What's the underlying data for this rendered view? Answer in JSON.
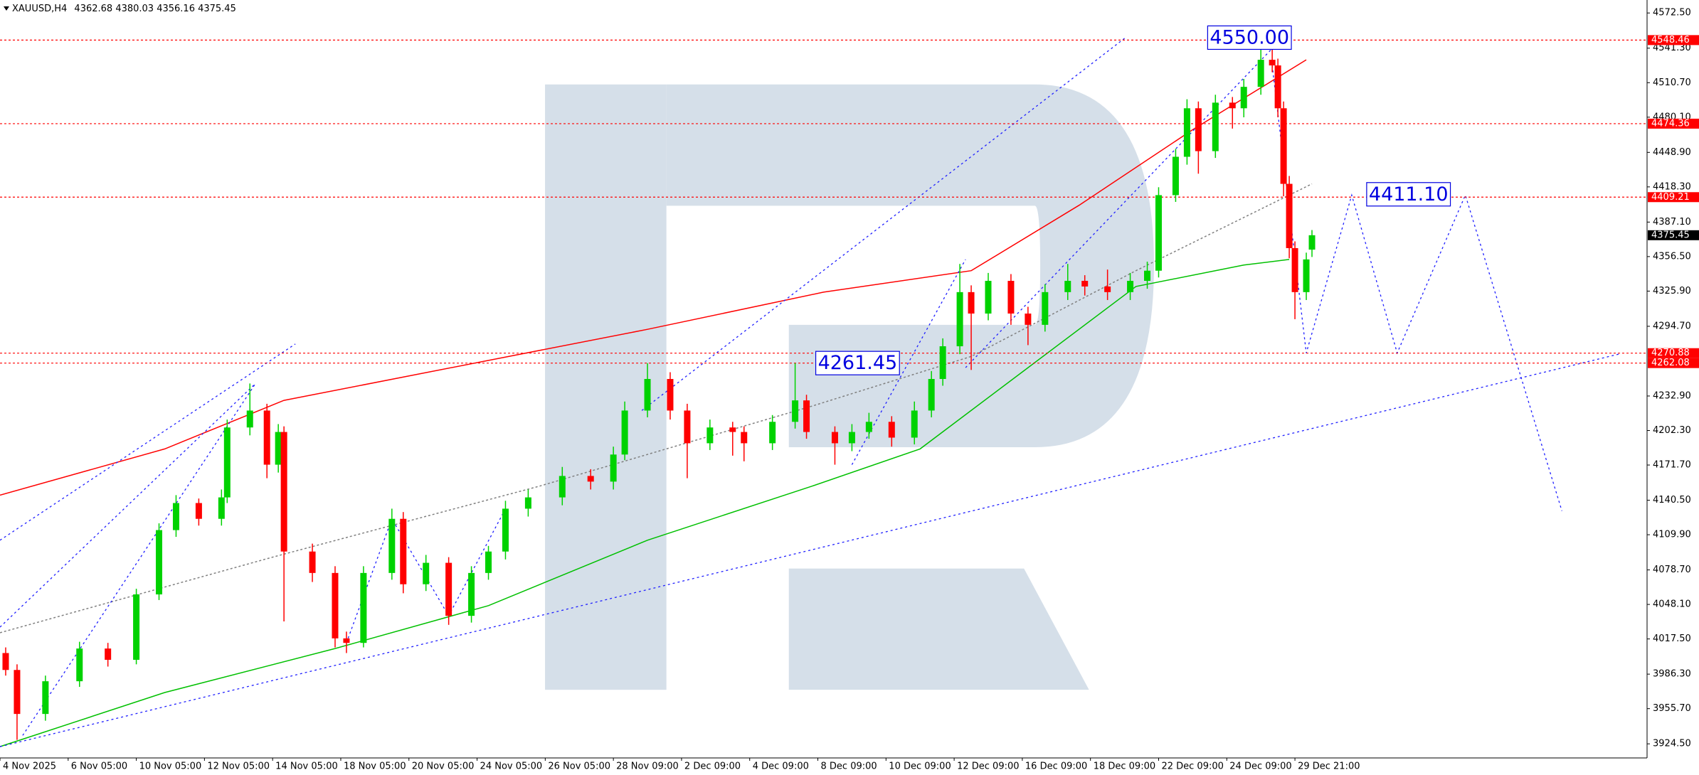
{
  "chart_data": {
    "type": "candlestick",
    "title": "XAUUSD,H4",
    "ohlc_text": "4362.68 4380.03 4356.16 4375.45",
    "xlim": [
      0,
      290
    ],
    "ylim": [
      3912,
      4584
    ],
    "xticks": [
      {
        "value": 0,
        "label": "4 Nov 2025"
      },
      {
        "value": 12,
        "label": "6 Nov 05:00"
      },
      {
        "value": 24,
        "label": "10 Nov 05:00"
      },
      {
        "value": 36,
        "label": "12 Nov 05:00"
      },
      {
        "value": 48,
        "label": "14 Nov 05:00"
      },
      {
        "value": 60,
        "label": "18 Nov 05:00"
      },
      {
        "value": 72,
        "label": "20 Nov 05:00"
      },
      {
        "value": 84,
        "label": "24 Nov 05:00"
      },
      {
        "value": 96,
        "label": "26 Nov 05:00"
      },
      {
        "value": 108,
        "label": "28 Nov 09:00"
      },
      {
        "value": 120,
        "label": "2 Dec 09:00"
      },
      {
        "value": 132,
        "label": "4 Dec 09:00"
      },
      {
        "value": 144,
        "label": "8 Dec 09:00"
      },
      {
        "value": 156,
        "label": "10 Dec 09:00"
      },
      {
        "value": 168,
        "label": "12 Dec 09:00"
      },
      {
        "value": 180,
        "label": "16 Dec 09:00"
      },
      {
        "value": 192,
        "label": "18 Dec 09:00"
      },
      {
        "value": 204,
        "label": "22 Dec 09:00"
      },
      {
        "value": 216,
        "label": "24 Dec 09:00"
      },
      {
        "value": 228,
        "label": "29 Dec 21:00"
      }
    ],
    "yticks": [
      {
        "value": 4572.5,
        "label": "4572.50"
      },
      {
        "value": 4541.3,
        "label": "4541.30"
      },
      {
        "value": 4510.7,
        "label": "4510.70"
      },
      {
        "value": 4480.1,
        "label": "4480.10"
      },
      {
        "value": 4448.9,
        "label": "4448.90"
      },
      {
        "value": 4418.3,
        "label": "4418.30"
      },
      {
        "value": 4387.1,
        "label": "4387.10"
      },
      {
        "value": 4356.5,
        "label": "4356.50"
      },
      {
        "value": 4325.9,
        "label": "4325.90"
      },
      {
        "value": 4294.7,
        "label": "4294.70"
      },
      {
        "value": 4232.9,
        "label": "4232.90"
      },
      {
        "value": 4202.3,
        "label": "4202.30"
      },
      {
        "value": 4171.7,
        "label": "4171.70"
      },
      {
        "value": 4140.5,
        "label": "4140.50"
      },
      {
        "value": 4109.9,
        "label": "4109.90"
      },
      {
        "value": 4078.7,
        "label": "4078.70"
      },
      {
        "value": 4048.1,
        "label": "4048.10"
      },
      {
        "value": 4017.5,
        "label": "4017.50"
      },
      {
        "value": 3986.3,
        "label": "3986.30"
      },
      {
        "value": 3955.7,
        "label": "3955.70"
      },
      {
        "value": 3924.5,
        "label": "3924.50"
      }
    ],
    "candles": {
      "up_color": "#00d200",
      "down_color": "#ff0000",
      "x": [
        1,
        3,
        8,
        14,
        19,
        24,
        28,
        31,
        35,
        39,
        40,
        44,
        47,
        49,
        50,
        55,
        59,
        61,
        64,
        69,
        71,
        75,
        79,
        83,
        86,
        89,
        93,
        99,
        104,
        108,
        110,
        114,
        118,
        121,
        125,
        129,
        131,
        136,
        140,
        142,
        147,
        150,
        153,
        157,
        161,
        164,
        166,
        169,
        171,
        174,
        178,
        181,
        184,
        188,
        191,
        195,
        199,
        202,
        204,
        207,
        209,
        211,
        214,
        217,
        219,
        222,
        224,
        225,
        226,
        227,
        228,
        230,
        231
      ],
      "open": [
        4005,
        3990,
        3951,
        3980,
        4009,
        3999,
        4057,
        4114,
        4138,
        4124,
        4143,
        4205,
        4220,
        4172,
        4201,
        4095,
        4076,
        4018,
        4014,
        4076,
        4124,
        4066,
        4085,
        4038,
        4076,
        4095,
        4133,
        4143,
        4162,
        4157,
        4181,
        4220,
        4248,
        4220,
        4191,
        4205,
        4201,
        4191,
        4210,
        4229,
        4201,
        4191,
        4201,
        4210,
        4196,
        4220,
        4248,
        4277,
        4325,
        4306,
        4335,
        4306,
        4296,
        4325,
        4335,
        4330,
        4325,
        4335,
        4344,
        4411,
        4445,
        4488,
        4450,
        4493,
        4488,
        4507,
        4531,
        4526,
        4488,
        4421,
        4364,
        4325,
        4362.68
      ],
      "high": [
        4010,
        3995,
        3985,
        4015,
        4014,
        4062,
        4120,
        4145,
        4142,
        4150,
        4212,
        4244,
        4226,
        4208,
        4206,
        4102,
        4082,
        4024,
        4082,
        4133,
        4130,
        4092,
        4090,
        4082,
        4100,
        4140,
        4150,
        4170,
        4168,
        4188,
        4228,
        4262,
        4254,
        4226,
        4212,
        4210,
        4206,
        4216,
        4262,
        4234,
        4206,
        4208,
        4218,
        4215,
        4228,
        4255,
        4284,
        4350,
        4331,
        4342,
        4341,
        4312,
        4332,
        4350,
        4340,
        4345,
        4342,
        4352,
        4418,
        4452,
        4496,
        4494,
        4500,
        4498,
        4514,
        4545,
        4548,
        4532,
        4494,
        4428,
        4370,
        4360,
        4380.03
      ],
      "low": [
        3985,
        3928,
        3945,
        3975,
        3993,
        3995,
        4052,
        4108,
        4118,
        4118,
        4138,
        4198,
        4160,
        4165,
        4033,
        4068,
        4010,
        4005,
        4010,
        4070,
        4058,
        4060,
        4030,
        4032,
        4070,
        4088,
        4126,
        4136,
        4150,
        4150,
        4176,
        4214,
        4212,
        4160,
        4185,
        4180,
        4175,
        4185,
        4204,
        4195,
        4172,
        4184,
        4195,
        4188,
        4190,
        4214,
        4242,
        4270,
        4256,
        4300,
        4296,
        4278,
        4290,
        4318,
        4322,
        4318,
        4318,
        4328,
        4338,
        4405,
        4438,
        4430,
        4444,
        4470,
        4480,
        4500,
        4520,
        4480,
        4410,
        4355,
        4301,
        4318,
        4356.16
      ],
      "close": [
        3990,
        3951,
        3980,
        4009,
        3999,
        4057,
        4114,
        4138,
        4124,
        4143,
        4205,
        4220,
        4172,
        4201,
        4095,
        4076,
        4018,
        4014,
        4076,
        4124,
        4066,
        4085,
        4038,
        4076,
        4095,
        4133,
        4143,
        4162,
        4157,
        4181,
        4220,
        4248,
        4220,
        4191,
        4205,
        4201,
        4191,
        4210,
        4229,
        4201,
        4191,
        4201,
        4210,
        4196,
        4220,
        4248,
        4277,
        4325,
        4306,
        4335,
        4306,
        4296,
        4325,
        4335,
        4330,
        4325,
        4335,
        4344,
        4411,
        4445,
        4488,
        4450,
        4493,
        4488,
        4507,
        4531,
        4526,
        4488,
        4421,
        4364,
        4325,
        4354,
        4375.45
      ]
    },
    "lines": [
      {
        "color": "#ff0000",
        "dash": "none",
        "x": [
          0,
          29,
          50,
          114,
          145,
          171,
          190,
          210,
          230
        ],
        "values": [
          4145,
          4186,
          4229,
          4292,
          4325,
          4344,
          4402,
          4469,
          4531
        ]
      },
      {
        "color": "#00c000",
        "dash": "none",
        "x": [
          0,
          29,
          59,
          86,
          114,
          143,
          162,
          181,
          200,
          219,
          227
        ],
        "values": [
          3922,
          3970,
          4009,
          4047,
          4105,
          4153,
          4186,
          4258,
          4330,
          4349,
          4354
        ]
      },
      {
        "color": "#808080",
        "dash": "3 3",
        "x": [
          0,
          48,
          95,
          143,
          171,
          200,
          231
        ],
        "values": [
          4023,
          4090,
          4153,
          4224,
          4268,
          4344,
          4421
        ]
      }
    ],
    "drawings": {
      "color": "#2020ff",
      "paths": [
        {
          "x": [
            224,
            230,
            238,
            246,
            258,
            275
          ],
          "values": [
            4526,
            4271,
            4411,
            4271,
            4411,
            4131
          ]
        },
        {
          "x": [
            0,
            285
          ],
          "values": [
            3922,
            4270
          ]
        },
        {
          "x": [
            0,
            52
          ],
          "values": [
            4105,
            4279
          ]
        },
        {
          "x": [
            0,
            45
          ],
          "values": [
            4028,
            4244
          ]
        },
        {
          "x": [
            4,
            45
          ],
          "values": [
            3932,
            4244
          ]
        },
        {
          "x": [
            113,
            198
          ],
          "values": [
            4220,
            4550
          ]
        },
        {
          "x": [
            150,
            170
          ],
          "values": [
            4172,
            4354
          ]
        },
        {
          "x": [
            170,
            224
          ],
          "values": [
            4258,
            4541
          ]
        },
        {
          "x": [
            61,
            69,
            79,
            89
          ],
          "values": [
            4014,
            4124,
            4038,
            4133
          ]
        }
      ]
    },
    "levels": {
      "color": "#ff0000",
      "values": [
        4548.46,
        4474.36,
        4409.21,
        4270.88,
        4262.08
      ]
    },
    "current_price": {
      "value": 4375.45,
      "color": "#000000"
    },
    "annotations": [
      {
        "label": "4550.00",
        "value": 4550,
        "x": 220
      },
      {
        "label": "4411.10",
        "value": 4411.1,
        "x": 248
      },
      {
        "label": "4261.45",
        "value": 4261.45,
        "x": 151
      }
    ]
  }
}
